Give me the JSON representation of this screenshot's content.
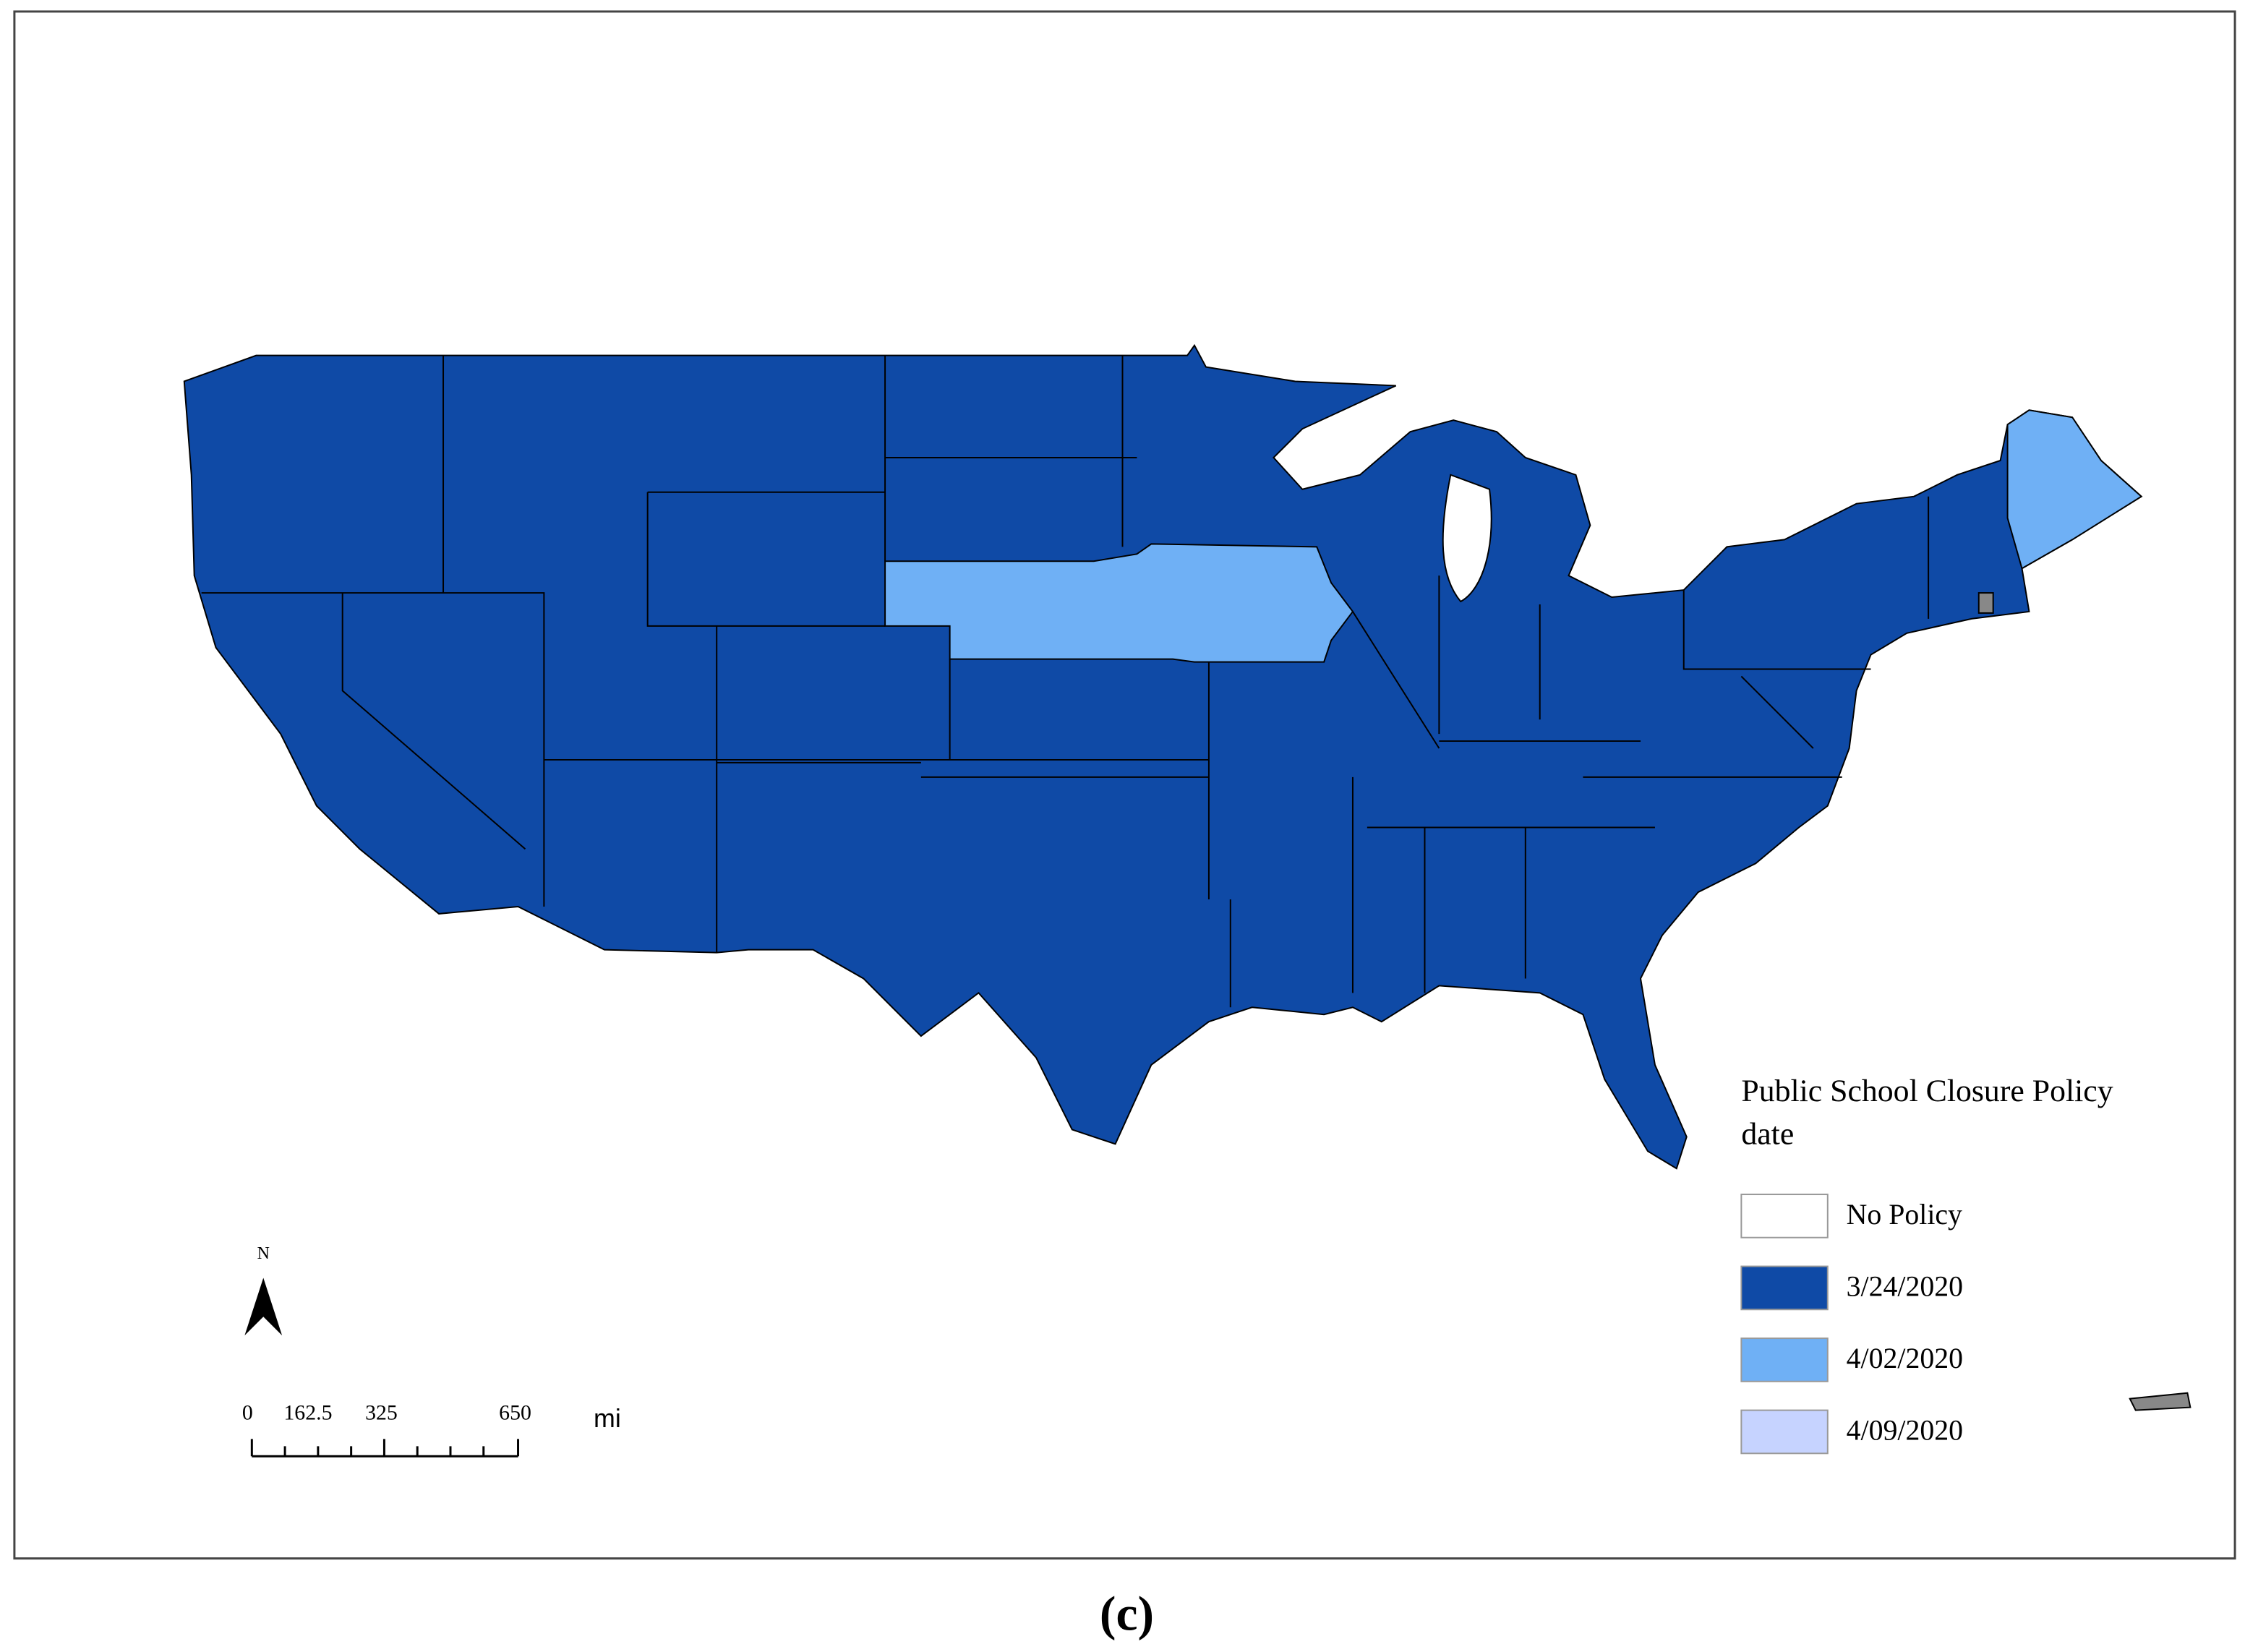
{
  "legend": {
    "title": [
      "Public School Closure Policy",
      "date"
    ],
    "items": [
      {
        "label": "No Policy",
        "color": "#ffffff"
      },
      {
        "label": "3/24/2020",
        "color": "#0f4aa6"
      },
      {
        "label": "4/02/2020",
        "color": "#6fb0f5"
      },
      {
        "label": "4/09/2020",
        "color": "#c6d3ff"
      }
    ]
  },
  "scale_bar": {
    "labels": [
      "0",
      "162.5",
      "325",
      "650"
    ],
    "unit": "mi"
  },
  "north_arrow": "N",
  "caption": "(c)"
}
